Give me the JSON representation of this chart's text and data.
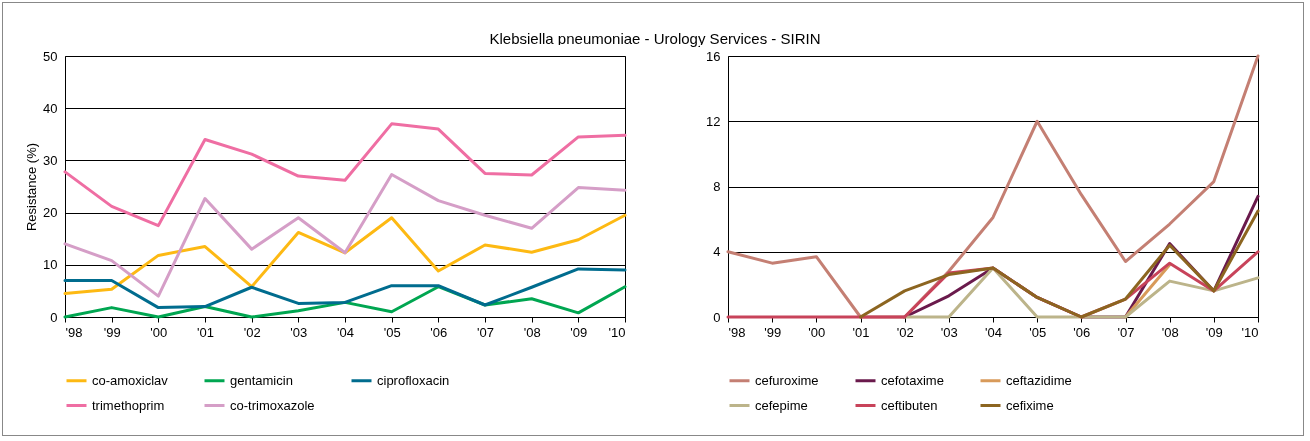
{
  "chart_data": [
    {
      "type": "line",
      "title": "Klebsiella pneumoniae - Urology Services - SIRIN",
      "ylabel": "Resistance  (%)",
      "categories": [
        "'98",
        "'99",
        "'00",
        "'01",
        "'02",
        "'03",
        "'04",
        "'05",
        "'06",
        "'07",
        "'08",
        "'09",
        "'10"
      ],
      "ylim": [
        0,
        50
      ],
      "yticks": [
        0,
        10,
        20,
        30,
        40,
        50
      ],
      "grid": "y",
      "legend": "bottom",
      "series": [
        {
          "name": "co-amoxiclav",
          "color": "#fdb913",
          "values": [
            4.5,
            5.3,
            11.8,
            13.5,
            5.8,
            16.2,
            12.3,
            19,
            8.8,
            13.8,
            12.4,
            14.8,
            19.5
          ]
        },
        {
          "name": "gentamicin",
          "color": "#00a651",
          "values": [
            0,
            1.8,
            0,
            2,
            0,
            1.2,
            2.8,
            1,
            5.8,
            2.3,
            3.5,
            0.8,
            5.8
          ]
        },
        {
          "name": "ciprofloxacin",
          "color": "#006c8e",
          "values": [
            7,
            7,
            1.8,
            2,
            5.7,
            2.6,
            2.8,
            6,
            6,
            2.3,
            5.7,
            9.2,
            9
          ]
        },
        {
          "name": "trimethoprim",
          "color": "#ef6ea3",
          "values": [
            27.8,
            21.2,
            17.5,
            34,
            31.2,
            27,
            26.2,
            37,
            36,
            27.5,
            27.2,
            34.5,
            34.8
          ]
        },
        {
          "name": "co-trimoxazole",
          "color": "#d59ec7",
          "values": [
            14,
            10.8,
            4,
            22.7,
            13,
            19,
            12.3,
            27.3,
            22.3,
            19.5,
            17,
            24.8,
            24.3
          ]
        }
      ]
    },
    {
      "type": "line",
      "categories": [
        "'98",
        "'99",
        "'00",
        "'01",
        "'02",
        "'03",
        "'04",
        "'05",
        "'06",
        "'07",
        "'08",
        "'09",
        "'10"
      ],
      "ylim": [
        0,
        16
      ],
      "yticks": [
        0,
        4,
        8,
        12,
        16
      ],
      "grid": "y",
      "legend": "bottom",
      "series": [
        {
          "name": "cefuroxime",
          "color": "#c47f73",
          "values": [
            4,
            3.3,
            3.7,
            0,
            0,
            2.8,
            6.1,
            12,
            7.5,
            3.4,
            5.7,
            8.3,
            16
          ]
        },
        {
          "name": "cefotaxime",
          "color": "#6a1a4c",
          "values": [
            null,
            null,
            null,
            null,
            0,
            1.3,
            3,
            1.2,
            0,
            0,
            4.5,
            1.6,
            7.4
          ]
        },
        {
          "name": "ceftazidime",
          "color": "#d89a5a",
          "values": [
            null,
            null,
            null,
            null,
            null,
            null,
            null,
            null,
            null,
            0,
            3.2,
            null,
            null
          ]
        },
        {
          "name": "cefepime",
          "color": "#bcb48a",
          "values": [
            null,
            null,
            null,
            null,
            0,
            0,
            3,
            0,
            0,
            0,
            2.2,
            1.6,
            2.4
          ]
        },
        {
          "name": "ceftibuten",
          "color": "#c8435a",
          "values": [
            0,
            0,
            0,
            0,
            0,
            2.7,
            3,
            1.2,
            0,
            1.1,
            3.3,
            1.6,
            4
          ]
        },
        {
          "name": "cefixime",
          "color": "#8c6520",
          "values": [
            null,
            null,
            null,
            0,
            1.6,
            2.6,
            3,
            1.2,
            0,
            1.1,
            4.4,
            1.6,
            6.5
          ]
        }
      ]
    }
  ]
}
